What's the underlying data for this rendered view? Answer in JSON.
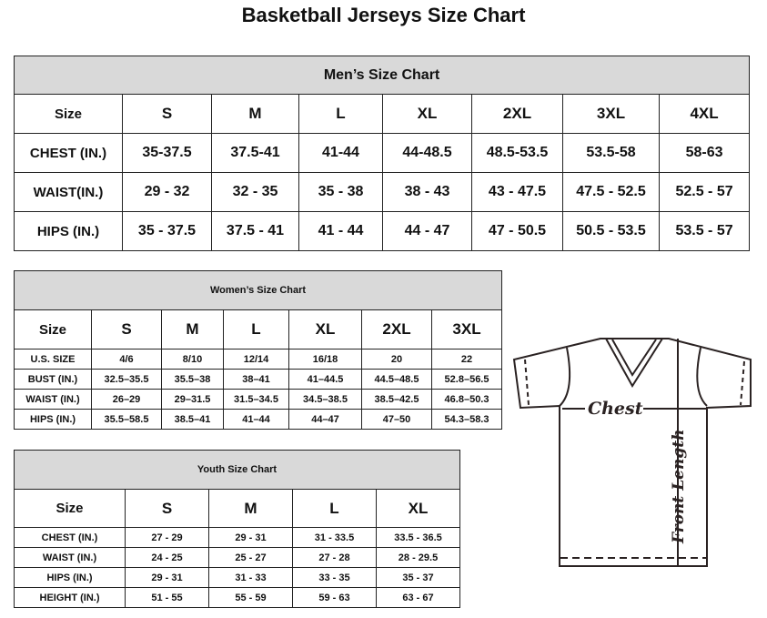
{
  "title": "Basketball Jerseys Size Chart",
  "men": {
    "caption": "Men’s Size Chart",
    "header": [
      "Size",
      "S",
      "M",
      "L",
      "XL",
      "2XL",
      "3XL",
      "4XL"
    ],
    "rows": [
      [
        "CHEST (IN.)",
        "35-37.5",
        "37.5-41",
        "41-44",
        "44-48.5",
        "48.5-53.5",
        "53.5-58",
        "58-63"
      ],
      [
        "WAIST(IN.)",
        "29 - 32",
        "32 - 35",
        "35 - 38",
        "38 - 43",
        "43 - 47.5",
        "47.5 - 52.5",
        "52.5 - 57"
      ],
      [
        "HIPS (IN.)",
        "35 - 37.5",
        "37.5 - 41",
        "41 - 44",
        "44 - 47",
        "47 - 50.5",
        "50.5 - 53.5",
        "53.5 - 57"
      ]
    ]
  },
  "women": {
    "caption": "Women’s Size Chart",
    "header": [
      "Size",
      "S",
      "M",
      "L",
      "XL",
      "2XL",
      "3XL"
    ],
    "rows": [
      [
        "U.S. SIZE",
        "4/6",
        "8/10",
        "12/14",
        "16/18",
        "20",
        "22"
      ],
      [
        "BUST (IN.)",
        "32.5–35.5",
        "35.5–38",
        "38–41",
        "41–44.5",
        "44.5–48.5",
        "52.8–56.5"
      ],
      [
        "WAIST (IN.)",
        "26–29",
        "29–31.5",
        "31.5–34.5",
        "34.5–38.5",
        "38.5–42.5",
        "46.8–50.3"
      ],
      [
        "HIPS (IN.)",
        "35.5–58.5",
        "38.5–41",
        "41–44",
        "44–47",
        "47–50",
        "54.3–58.3"
      ]
    ]
  },
  "youth": {
    "caption": "Youth Size Chart",
    "header": [
      "Size",
      "S",
      "M",
      "L",
      "XL"
    ],
    "rows": [
      [
        "CHEST (IN.)",
        "27 - 29",
        "29 - 31",
        "31 - 33.5",
        "33.5 - 36.5"
      ],
      [
        "WAIST (IN.)",
        "24 - 25",
        "25 - 27",
        "27 - 28",
        "28 - 29.5"
      ],
      [
        "HIPS (IN.)",
        "29 - 31",
        "31 - 33",
        "33 - 35",
        "35 - 37"
      ],
      [
        "HEIGHT (IN.)",
        "51 - 55",
        "55 - 59",
        "59 - 63",
        "63 - 67"
      ]
    ]
  },
  "diagram": {
    "chest_label": "Chest",
    "length_label": "Front Length"
  }
}
